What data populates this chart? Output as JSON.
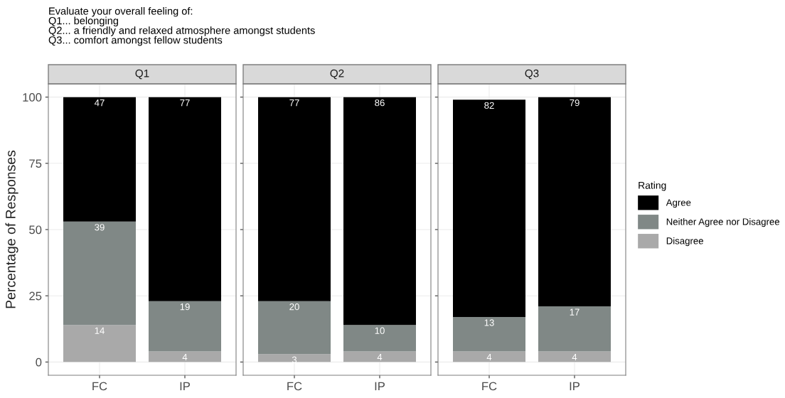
{
  "chart_data": [
    {
      "type": "bar",
      "stacked": true,
      "title": "Q1",
      "annotations": [
        "Evaluate your overall feeling of:\nQ1... belonging\nQ2... a friendly and relaxed atmosphere amongst students\nQ3... comfort amongst fellow students"
      ],
      "ylabel": "Percentage of Responses",
      "categories": [
        "FC",
        "IP"
      ],
      "ylim": [
        -5,
        105
      ],
      "yticks": [
        0,
        25,
        50,
        75,
        100
      ],
      "grid": true,
      "data_labels": true,
      "series": [
        {
          "color": "#a9a9a9",
          "values": [
            14,
            4
          ]
        },
        {
          "color": "#808886",
          "values": [
            39,
            19
          ]
        },
        {
          "color": "#000000",
          "values": [
            47,
            77
          ]
        }
      ]
    },
    {
      "type": "bar",
      "stacked": true,
      "title": "Q2",
      "categories": [
        "FC",
        "IP"
      ],
      "ylim": [
        -5,
        105
      ],
      "yticks": [
        0,
        25,
        50,
        75,
        100
      ],
      "tick_labels": "x",
      "grid": true,
      "data_labels": true,
      "series": [
        {
          "color": "#a9a9a9",
          "values": [
            3,
            4
          ]
        },
        {
          "color": "#808886",
          "values": [
            20,
            10
          ]
        },
        {
          "color": "#000000",
          "values": [
            77,
            86
          ]
        }
      ]
    },
    {
      "type": "bar",
      "stacked": true,
      "title": "Q3",
      "categories": [
        "FC",
        "IP"
      ],
      "ylim": [
        -5,
        105
      ],
      "yticks": [
        0,
        25,
        50,
        75,
        100
      ],
      "tick_labels": "x",
      "grid": true,
      "data_labels": true,
      "legend": "right",
      "legend_title": "Rating",
      "series": [
        {
          "name": "Disagree",
          "color": "#a9a9a9",
          "values": [
            4,
            4
          ]
        },
        {
          "name": "Neither Agree nor Disagree",
          "color": "#808886",
          "values": [
            13,
            17
          ]
        },
        {
          "name": "Agree",
          "color": "#000000",
          "values": [
            82,
            79
          ]
        }
      ]
    }
  ]
}
